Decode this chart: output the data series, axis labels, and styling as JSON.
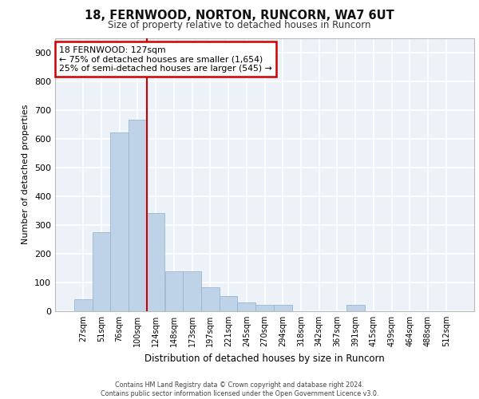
{
  "title": "18, FERNWOOD, NORTON, RUNCORN, WA7 6UT",
  "subtitle": "Size of property relative to detached houses in Runcorn",
  "xlabel": "Distribution of detached houses by size in Runcorn",
  "ylabel": "Number of detached properties",
  "bar_labels": [
    "27sqm",
    "51sqm",
    "76sqm",
    "100sqm",
    "124sqm",
    "148sqm",
    "173sqm",
    "197sqm",
    "221sqm",
    "245sqm",
    "270sqm",
    "294sqm",
    "318sqm",
    "342sqm",
    "367sqm",
    "391sqm",
    "415sqm",
    "439sqm",
    "464sqm",
    "488sqm",
    "512sqm"
  ],
  "bar_values": [
    42,
    275,
    620,
    665,
    340,
    140,
    140,
    82,
    52,
    30,
    22,
    22,
    0,
    0,
    0,
    22,
    0,
    0,
    0,
    0,
    0
  ],
  "bar_color": "#bed3e8",
  "bar_edge_color": "#9ab6d0",
  "annotation_text": "18 FERNWOOD: 127sqm\n← 75% of detached houses are smaller (1,654)\n25% of semi-detached houses are larger (545) →",
  "annotation_box_color": "#ffffff",
  "annotation_box_edge": "#cc0000",
  "vline_color": "#cc0000",
  "vline_pos": 3.5,
  "ylim": [
    0,
    950
  ],
  "yticks": [
    0,
    100,
    200,
    300,
    400,
    500,
    600,
    700,
    800,
    900
  ],
  "footer": "Contains HM Land Registry data © Crown copyright and database right 2024.\nContains public sector information licensed under the Open Government Licence v3.0.",
  "background_color": "#edf2f9",
  "grid_color": "#ffffff"
}
